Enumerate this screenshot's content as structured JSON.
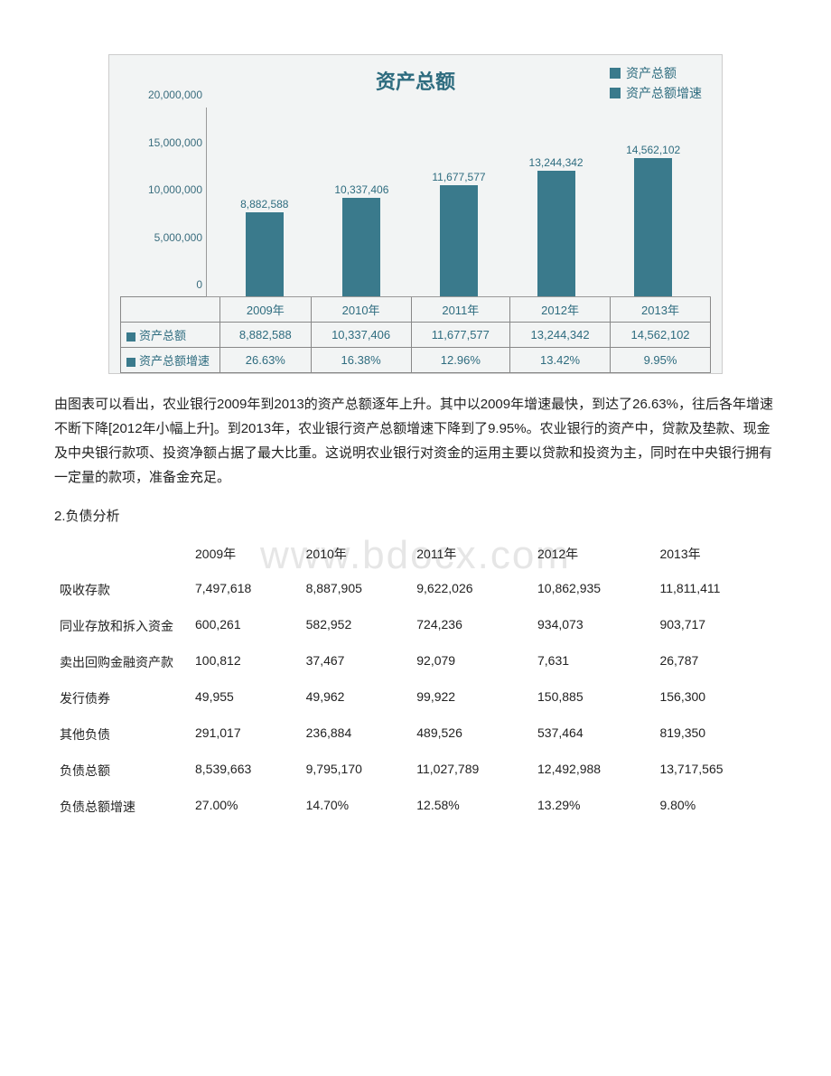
{
  "watermark": "www.bdocx.com",
  "chart": {
    "type": "bar",
    "title": "资产总额",
    "legend": [
      {
        "label": "资产总额",
        "color": "#3a7a8c"
      },
      {
        "label": "资产总额增速",
        "color": "#3a7a8c"
      }
    ],
    "categories": [
      "2009年",
      "2010年",
      "2011年",
      "2012年",
      "2013年"
    ],
    "values": [
      8882588,
      10337406,
      11677577,
      13244342,
      14562102
    ],
    "value_labels": [
      "8,882,588",
      "10,337,406",
      "11,677,577",
      "13,244,342",
      "14,562,102"
    ],
    "bar_color": "#3a7a8c",
    "background_color": "#f2f4f4",
    "border_color": "#cccccc",
    "ylim_max": 20000000,
    "y_ticks": [
      {
        "value": 0,
        "label": "0"
      },
      {
        "value": 5000000,
        "label": "5,000,000"
      },
      {
        "value": 10000000,
        "label": "10,000,000"
      },
      {
        "value": 15000000,
        "label": "15,000,000"
      },
      {
        "value": 20000000,
        "label": "20,000,000"
      }
    ],
    "table_rows": [
      {
        "swatch": "#3a7a8c",
        "label": "资产总额",
        "cells": [
          "8,882,588",
          "10,337,406",
          "11,677,577",
          "13,244,342",
          "14,562,102"
        ]
      },
      {
        "swatch": "#3a7a8c",
        "label": "资产总额增速",
        "cells": [
          "26.63%",
          "16.38%",
          "12.96%",
          "13.42%",
          "9.95%"
        ]
      }
    ],
    "text_color": "#2e6c7f",
    "title_fontsize": 22,
    "label_fontsize": 12
  },
  "paragraph": "由图表可以看出，农业银行2009年到2013的资产总额逐年上升。其中以2009年增速最快，到达了26.63%，往后各年增速不断下降[2012年小幅上升]。到2013年，农业银行资产总额增速下降到了9.95%。农业银行的资产中，贷款及垫款、现金及中央银行款项、投资净额占据了最大比重。这说明农业银行对资金的运用主要以贷款和投资为主，同时在中央银行拥有一定量的款项，准备金充足。",
  "section_heading": "2.负债分析",
  "liabilities_table": {
    "columns": [
      "",
      "2009年",
      "2010年",
      "2011年",
      "2012年",
      "2013年"
    ],
    "rows": [
      {
        "label": "吸收存款",
        "cells": [
          "7,497,618",
          "8,887,905",
          "9,622,026",
          "10,862,935",
          "11,811,411"
        ]
      },
      {
        "label": "同业存放和拆入资金",
        "cells": [
          "600,261",
          "582,952",
          "724,236",
          "934,073",
          "903,717"
        ]
      },
      {
        "label": "卖出回购金融资产款",
        "cells": [
          "100,812",
          "37,467",
          "92,079",
          "7,631",
          "26,787"
        ]
      },
      {
        "label": "发行债券",
        "cells": [
          "49,955",
          "49,962",
          "99,922",
          "150,885",
          "156,300"
        ]
      },
      {
        "label": "其他负债",
        "cells": [
          "291,017",
          "236,884",
          "489,526",
          "537,464",
          "819,350"
        ]
      },
      {
        "label": "负债总额",
        "cells": [
          "8,539,663",
          "9,795,170",
          "11,027,789",
          "12,492,988",
          "13,717,565"
        ]
      },
      {
        "label": "负债总额增速",
        "cells": [
          "27.00%",
          "14.70%",
          "12.58%",
          "13.29%",
          "9.80%"
        ]
      }
    ]
  }
}
